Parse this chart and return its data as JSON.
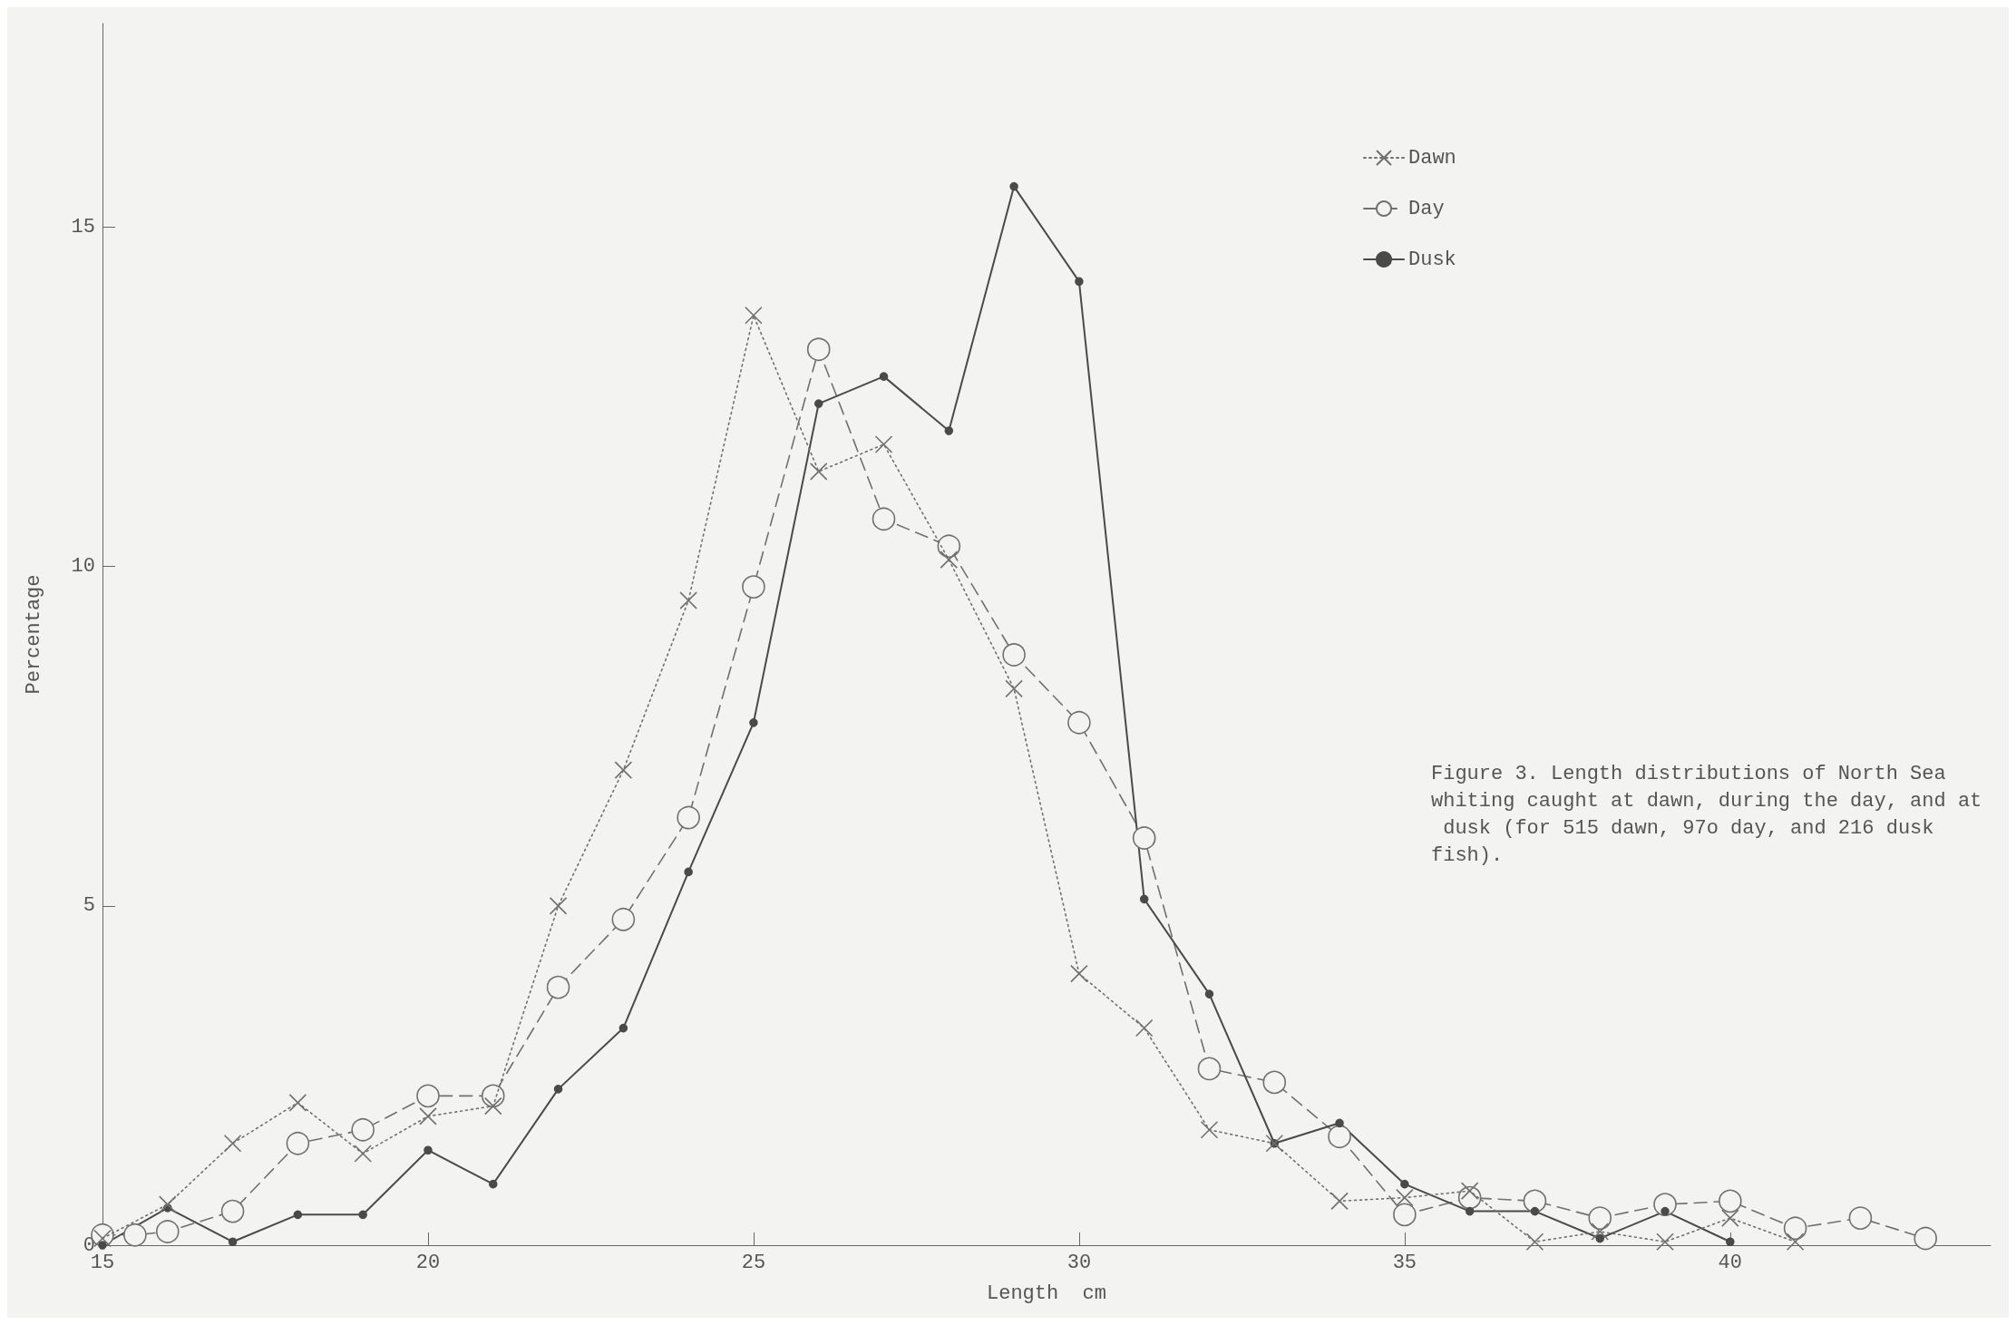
{
  "chart_data": {
    "type": "line",
    "xlabel": "Length  cm",
    "ylabel": "Percentage",
    "xlim": [
      15,
      44
    ],
    "ylim": [
      0,
      18
    ],
    "xticks": [
      15,
      20,
      25,
      30,
      35,
      40
    ],
    "yticks": [
      0,
      5,
      10,
      15
    ],
    "grid": false,
    "legend": "top right",
    "annotations": [
      "Figure 3. Length distributions of North Sea whiting caught at dawn, during the day, and at dusk (for 515 dawn, 97o day, and 216 dusk fish)."
    ],
    "series": [
      {
        "name": "Dawn",
        "color": "#707070",
        "marker": "cross",
        "line_style": "dotted",
        "x": [
          15,
          16,
          17,
          18,
          19,
          20,
          21,
          22,
          23,
          24,
          25,
          26,
          27,
          28,
          29,
          30,
          31,
          32,
          33,
          34,
          35,
          36,
          37,
          38,
          39,
          40,
          41
        ],
        "values": [
          0.1,
          0.6,
          1.5,
          2.1,
          1.35,
          1.9,
          2.05,
          5.0,
          7.0,
          9.5,
          13.7,
          11.4,
          11.8,
          10.1,
          8.2,
          4.0,
          3.2,
          1.7,
          1.5,
          0.65,
          0.7,
          0.8,
          0.05,
          0.2,
          0.05,
          0.4,
          0.05
        ]
      },
      {
        "name": "Day",
        "color": "#707070",
        "marker": "circle",
        "line_style": "dashed",
        "x": [
          15,
          15.5,
          16,
          17,
          18,
          19,
          20,
          21,
          22,
          23,
          24,
          25,
          26,
          27,
          28,
          29,
          30,
          31,
          32,
          33,
          34,
          35,
          36,
          37,
          38,
          39,
          40,
          41,
          42,
          43
        ],
        "values": [
          0.15,
          0.15,
          0.2,
          0.5,
          1.5,
          1.7,
          2.2,
          2.2,
          3.8,
          4.8,
          6.3,
          9.7,
          13.2,
          10.7,
          10.3,
          8.7,
          7.7,
          6.0,
          2.6,
          2.4,
          1.6,
          0.45,
          0.7,
          0.65,
          0.4,
          0.6,
          0.65,
          0.25,
          0.4,
          0.1
        ]
      },
      {
        "name": "Dusk",
        "color": "#4a4a4a",
        "marker": "circle",
        "line_style": "solid",
        "x": [
          15,
          16,
          17,
          18,
          19,
          20,
          21,
          22,
          23,
          24,
          25,
          26,
          27,
          28,
          29,
          30,
          31,
          32,
          33,
          34,
          35,
          36,
          37,
          38,
          39,
          40
        ],
        "values": [
          0.0,
          0.55,
          0.05,
          0.45,
          0.45,
          1.4,
          0.9,
          2.3,
          3.2,
          5.5,
          7.7,
          12.4,
          12.8,
          12.0,
          15.6,
          14.2,
          5.1,
          3.7,
          1.5,
          1.8,
          0.9,
          0.5,
          0.5,
          0.1,
          0.5,
          0.05
        ]
      }
    ]
  }
}
